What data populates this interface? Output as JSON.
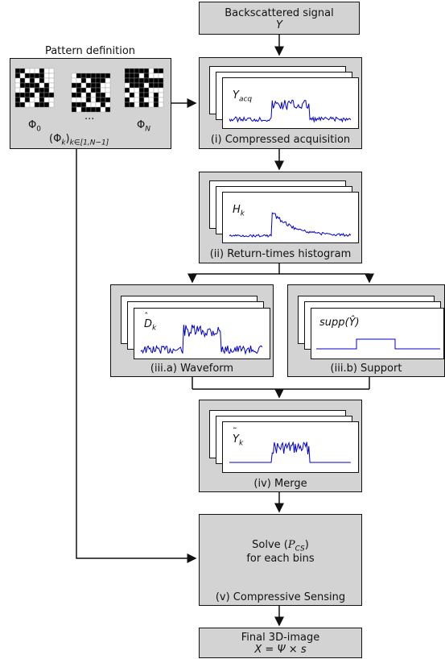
{
  "signal_box": {
    "title": "Backscattered signal",
    "symbol": "Y"
  },
  "pattern_box": {
    "title": "Pattern definition",
    "phi_first": "Φ",
    "phi_first_sub": "0",
    "dots": "...",
    "phi_last": "Φ",
    "phi_last_sub": "N",
    "set_label": "(Φ",
    "set_sub": "k",
    "set_tail": ")",
    "set_index": "k∈[1,N−1]"
  },
  "stages": {
    "acquisition": {
      "caption": "(i) Compressed acquisition",
      "label": "Y",
      "label_sub": "acq"
    },
    "histogram": {
      "caption": "(ii) Return-times histogram",
      "label": "H",
      "label_sub": "k"
    },
    "waveform": {
      "caption": "(iii.a) Waveform",
      "label": "D",
      "label_sub": "k"
    },
    "support": {
      "caption": "(iii.b) Support",
      "label": "supp(Ŷ)"
    },
    "merge": {
      "caption": "(iv) Merge",
      "label": "Y",
      "label_sub": "k"
    },
    "cs": {
      "caption": "(v) Compressive Sensing",
      "line1_pre": "Solve (",
      "line1_sym": "P",
      "line1_sub": "CS",
      "line1_post": ")",
      "line2": "for each bins"
    },
    "final": {
      "title": "Final 3D-image",
      "equation": "X = Ψ × s"
    }
  },
  "colors": {
    "box_fill": "#d3d3d3",
    "signal": "#0000cc",
    "border": "#111111"
  }
}
